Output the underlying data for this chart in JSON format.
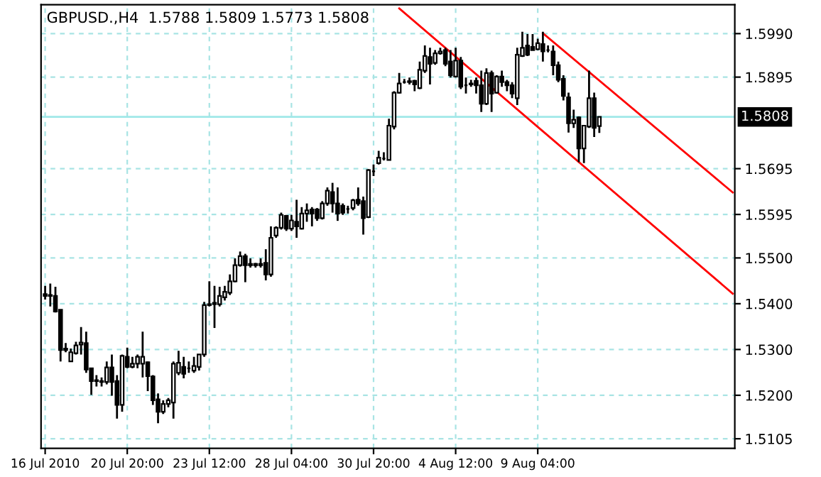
{
  "chart_data": {
    "type": "candlestick",
    "title": "GBPUSD.,H4  1.5788 1.5809 1.5773 1.5808",
    "categories": [
      "16 Jul 2010",
      null,
      null,
      null,
      null,
      null,
      null,
      null,
      null,
      null,
      null,
      null,
      null,
      null,
      null,
      null,
      "20 Jul 20:00",
      null,
      null,
      null,
      null,
      null,
      null,
      null,
      null,
      null,
      null,
      null,
      null,
      null,
      null,
      null,
      "23 Jul 12:00",
      null,
      null,
      null,
      null,
      null,
      null,
      null,
      null,
      null,
      null,
      null,
      null,
      null,
      null,
      null,
      "28 Jul 04:00",
      null,
      null,
      null,
      null,
      null,
      null,
      null,
      null,
      null,
      null,
      null,
      null,
      null,
      null,
      null,
      "30 Jul 20:00",
      null,
      null,
      null,
      null,
      null,
      null,
      null,
      null,
      null,
      null,
      null,
      null,
      null,
      null,
      null,
      "4 Aug 12:00",
      null,
      null,
      null,
      null,
      null,
      null,
      null,
      null,
      null,
      null,
      null,
      null,
      null,
      null,
      null,
      "9 Aug 04:00",
      null,
      null,
      null,
      null,
      null,
      null,
      null,
      null,
      null,
      null,
      null,
      null,
      null,
      null,
      null,
      null,
      null,
      null,
      null,
      null,
      null,
      null,
      null,
      null,
      null,
      null,
      null,
      null,
      null,
      null,
      null,
      null,
      null,
      null,
      null,
      null,
      null,
      null
    ],
    "color": "#000000",
    "ohlc": [
      [
        1.5421,
        1.5439,
        1.5409,
        1.5417
      ],
      [
        1.5417,
        1.5444,
        1.5394,
        1.5419
      ],
      [
        1.5417,
        1.5437,
        1.5381,
        1.5383
      ],
      [
        1.5387,
        1.5387,
        1.5274,
        1.5299
      ],
      [
        1.5302,
        1.5314,
        1.5294,
        1.5299
      ],
      [
        1.5274,
        1.5302,
        1.5274,
        1.5294
      ],
      [
        1.5292,
        1.5317,
        1.5289,
        1.5309
      ],
      [
        1.5311,
        1.5349,
        1.5289,
        1.5315
      ],
      [
        1.5314,
        1.5339,
        1.5249,
        1.5256
      ],
      [
        1.5259,
        1.5259,
        1.5201,
        1.5231
      ],
      [
        1.5231,
        1.5244,
        1.5219,
        1.5233
      ],
      [
        1.5231,
        1.5239,
        1.5219,
        1.5229
      ],
      [
        1.5229,
        1.5274,
        1.5224,
        1.5261
      ],
      [
        1.5261,
        1.5289,
        1.5199,
        1.5229
      ],
      [
        1.5231,
        1.5244,
        1.5149,
        1.5179
      ],
      [
        1.5179,
        1.5289,
        1.5164,
        1.5286
      ],
      [
        1.5284,
        1.5304,
        1.5259,
        1.5262
      ],
      [
        1.5262,
        1.5284,
        1.5259,
        1.5269
      ],
      [
        1.5269,
        1.5289,
        1.5259,
        1.5284
      ],
      [
        1.5269,
        1.5339,
        1.5239,
        1.5284
      ],
      [
        1.5272,
        1.5274,
        1.5209,
        1.5242
      ],
      [
        1.5241,
        1.5244,
        1.5179,
        1.5189
      ],
      [
        1.5191,
        1.5204,
        1.5139,
        1.5164
      ],
      [
        1.5164,
        1.5189,
        1.5159,
        1.5181
      ],
      [
        1.5181,
        1.5194,
        1.5174,
        1.5189
      ],
      [
        1.5184,
        1.5274,
        1.5149,
        1.5269
      ],
      [
        1.5249,
        1.5297,
        1.5244,
        1.5271
      ],
      [
        1.5262,
        1.5284,
        1.5237,
        1.5247
      ],
      [
        1.5259,
        1.5274,
        1.5249,
        1.5259
      ],
      [
        1.5254,
        1.5284,
        1.5249,
        1.5264
      ],
      [
        1.5262,
        1.5289,
        1.5254,
        1.5289
      ],
      [
        1.5289,
        1.5404,
        1.5284,
        1.5397
      ],
      [
        1.5397,
        1.5449,
        1.5394,
        1.5399
      ],
      [
        1.5399,
        1.5439,
        1.5347,
        1.5402
      ],
      [
        1.5399,
        1.5437,
        1.5394,
        1.5417
      ],
      [
        1.5414,
        1.5439,
        1.5407,
        1.5426
      ],
      [
        1.5424,
        1.5464,
        1.5419,
        1.5449
      ],
      [
        1.5449,
        1.5499,
        1.5447,
        1.5484
      ],
      [
        1.5484,
        1.5514,
        1.5481,
        1.5504
      ],
      [
        1.5504,
        1.5509,
        1.5447,
        1.5484
      ],
      [
        1.5487,
        1.5499,
        1.5479,
        1.5484
      ],
      [
        1.5484,
        1.5489,
        1.5479,
        1.5487
      ],
      [
        1.5487,
        1.5499,
        1.5479,
        1.5484
      ],
      [
        1.5489,
        1.5519,
        1.5451,
        1.5464
      ],
      [
        1.5464,
        1.5569,
        1.5459,
        1.5544
      ],
      [
        1.5549,
        1.5569,
        1.5544,
        1.5566
      ],
      [
        1.5566,
        1.5599,
        1.5562,
        1.5594
      ],
      [
        1.5592,
        1.5594,
        1.5559,
        1.5564
      ],
      [
        1.5564,
        1.5594,
        1.5559,
        1.5582
      ],
      [
        1.5579,
        1.5627,
        1.5544,
        1.5569
      ],
      [
        1.5564,
        1.5611,
        1.5562,
        1.5597
      ],
      [
        1.5597,
        1.5619,
        1.5579,
        1.5604
      ],
      [
        1.5606,
        1.5611,
        1.5569,
        1.5597
      ],
      [
        1.5606,
        1.5609,
        1.5581,
        1.5587
      ],
      [
        1.5587,
        1.5624,
        1.5584,
        1.5619
      ],
      [
        1.5619,
        1.5654,
        1.5614,
        1.5647
      ],
      [
        1.5644,
        1.5664,
        1.5599,
        1.5619
      ],
      [
        1.5619,
        1.5654,
        1.5581,
        1.5597
      ],
      [
        1.5614,
        1.5619,
        1.5594,
        1.5599
      ],
      [
        1.5607,
        1.5614,
        1.5597,
        1.5607
      ],
      [
        1.5609,
        1.5629,
        1.5604,
        1.5626
      ],
      [
        1.5627,
        1.5654,
        1.5614,
        1.5619
      ],
      [
        1.5624,
        1.5634,
        1.5551,
        1.5587
      ],
      [
        1.5589,
        1.5694,
        1.5587,
        1.5692
      ],
      [
        1.5689,
        1.5704,
        1.5679,
        1.5689
      ],
      [
        1.5707,
        1.5734,
        1.5704,
        1.5719
      ],
      [
        1.5717,
        1.5731,
        1.5713,
        1.5717
      ],
      [
        1.5714,
        1.5804,
        1.5714,
        1.5789
      ],
      [
        1.5787,
        1.5864,
        1.5781,
        1.5861
      ],
      [
        1.5861,
        1.5904,
        1.5859,
        1.5881
      ],
      [
        1.5884,
        1.5891,
        1.5881,
        1.5884
      ],
      [
        1.5884,
        1.5894,
        1.5879,
        1.5886
      ],
      [
        1.5887,
        1.5889,
        1.5864,
        1.5879
      ],
      [
        1.5871,
        1.5929,
        1.5869,
        1.5911
      ],
      [
        1.5909,
        1.5964,
        1.5904,
        1.5941
      ],
      [
        1.5939,
        1.5959,
        1.5879,
        1.5924
      ],
      [
        1.5926,
        1.5954,
        1.5922,
        1.5947
      ],
      [
        1.5947,
        1.5959,
        1.5944,
        1.5951
      ],
      [
        1.5954,
        1.5959,
        1.5919,
        1.5924
      ],
      [
        1.5929,
        1.5954,
        1.5894,
        1.5899
      ],
      [
        1.5896,
        1.5959,
        1.5894,
        1.5931
      ],
      [
        1.5931,
        1.5939,
        1.5869,
        1.5874
      ],
      [
        1.5877,
        1.5894,
        1.5859,
        1.5877
      ],
      [
        1.5879,
        1.5889,
        1.5874,
        1.5881
      ],
      [
        1.5887,
        1.5894,
        1.5859,
        1.5877
      ],
      [
        1.5877,
        1.5909,
        1.5819,
        1.5837
      ],
      [
        1.5837,
        1.5914,
        1.5834,
        1.5904
      ],
      [
        1.5904,
        1.5909,
        1.5819,
        1.5859
      ],
      [
        1.5861,
        1.5899,
        1.5859,
        1.5896
      ],
      [
        1.5896,
        1.5909,
        1.5874,
        1.5884
      ],
      [
        1.5884,
        1.5889,
        1.5864,
        1.5877
      ],
      [
        1.5877,
        1.5884,
        1.5849,
        1.5859
      ],
      [
        1.5849,
        1.5959,
        1.5834,
        1.5944
      ],
      [
        1.5941,
        1.5994,
        1.5939,
        1.5959
      ],
      [
        1.5964,
        1.5989,
        1.5941,
        1.5944
      ],
      [
        1.5961,
        1.5989,
        1.5954,
        1.5954
      ],
      [
        1.5956,
        1.5979,
        1.5954,
        1.5969
      ],
      [
        1.5967,
        1.5994,
        1.5929,
        1.5951
      ],
      [
        1.5954,
        1.5964,
        1.5949,
        1.5954
      ],
      [
        1.5951,
        1.5964,
        1.5899,
        1.5921
      ],
      [
        1.5921,
        1.5929,
        1.5884,
        1.5889
      ],
      [
        1.5891,
        1.5899,
        1.5844,
        1.5854
      ],
      [
        1.5851,
        1.5861,
        1.5774,
        1.5794
      ],
      [
        1.5794,
        1.5824,
        1.5784,
        1.5802
      ],
      [
        1.5807,
        1.5809,
        1.5709,
        1.5739
      ],
      [
        1.5739,
        1.5789,
        1.5707,
        1.5789
      ],
      [
        1.5787,
        1.5909,
        1.5784,
        1.5849
      ],
      [
        1.5849,
        1.5861,
        1.5764,
        1.5784
      ],
      [
        1.5788,
        1.5809,
        1.5773,
        1.5808
      ],
      null,
      null,
      null,
      null,
      null,
      null,
      null,
      null,
      null,
      null,
      null,
      null,
      null,
      null,
      null,
      null,
      null,
      null,
      null,
      null,
      null,
      null,
      null,
      null,
      null,
      null
    ],
    "series": [
      {
        "type": "line",
        "color": "#ff0000",
        "values": [
          null,
          null,
          null,
          null,
          null,
          null,
          null,
          null,
          null,
          null,
          null,
          null,
          null,
          null,
          null,
          null,
          null,
          null,
          null,
          null,
          null,
          null,
          null,
          null,
          null,
          null,
          null,
          null,
          null,
          null,
          null,
          null,
          null,
          null,
          null,
          null,
          null,
          null,
          null,
          null,
          null,
          null,
          null,
          null,
          null,
          null,
          null,
          null,
          null,
          null,
          null,
          null,
          null,
          null,
          null,
          null,
          null,
          null,
          null,
          null,
          null,
          null,
          null,
          null,
          null,
          null,
          null,
          null,
          null,
          null,
          null,
          null,
          null,
          null,
          null,
          null,
          null,
          null,
          null,
          null,
          null,
          null,
          null,
          null,
          null,
          null,
          null,
          null,
          null,
          null,
          null,
          null,
          null,
          null,
          null,
          null,
          null,
          1.5991,
          null,
          null,
          null,
          null,
          null,
          null,
          null,
          null,
          null,
          null,
          null,
          null,
          null,
          null,
          null,
          null,
          null,
          null,
          null,
          null,
          null,
          null,
          null,
          null,
          null,
          null,
          null,
          null,
          null,
          null,
          null,
          null,
          null,
          null,
          null,
          null,
          1.5643
        ]
      },
      {
        "type": "line",
        "color": "#ff0000",
        "values": [
          null,
          null,
          null,
          null,
          null,
          null,
          null,
          null,
          null,
          null,
          null,
          null,
          null,
          null,
          null,
          null,
          null,
          null,
          null,
          null,
          null,
          null,
          null,
          null,
          null,
          null,
          null,
          null,
          null,
          null,
          null,
          null,
          null,
          null,
          null,
          null,
          null,
          null,
          null,
          null,
          null,
          null,
          null,
          null,
          null,
          null,
          null,
          null,
          null,
          null,
          null,
          null,
          null,
          null,
          null,
          null,
          null,
          null,
          null,
          null,
          null,
          null,
          null,
          null,
          null,
          null,
          null,
          null,
          null,
          1.6045,
          null,
          null,
          null,
          null,
          null,
          null,
          null,
          null,
          null,
          null,
          null,
          null,
          null,
          null,
          null,
          null,
          null,
          null,
          null,
          null,
          null,
          null,
          null,
          null,
          null,
          null,
          null,
          null,
          null,
          null,
          null,
          null,
          null,
          null,
          null,
          null,
          null,
          null,
          null,
          null,
          null,
          null,
          null,
          null,
          null,
          null,
          null,
          null,
          null,
          null,
          null,
          null,
          null,
          null,
          null,
          null,
          null,
          null,
          null,
          null,
          null,
          null,
          null,
          null,
          1.5422
        ]
      }
    ],
    "ylim": [
      1.5084,
      1.6053
    ],
    "yticks": [
      {
        "value": 1.599,
        "label": "1.5990"
      },
      1.5895,
      1.5695,
      1.5595,
      {
        "value": 1.55,
        "label": "1.5500"
      },
      {
        "value": 1.54,
        "label": "1.5400"
      },
      {
        "value": 1.53,
        "label": "1.5300"
      },
      {
        "value": 1.52,
        "label": "1.5200"
      },
      1.5105
    ],
    "ref_lines": [
      {
        "axis": "y",
        "value": 1.5808,
        "label": "1.5808",
        "color": "#a0e8e8"
      }
    ],
    "grid": true
  }
}
